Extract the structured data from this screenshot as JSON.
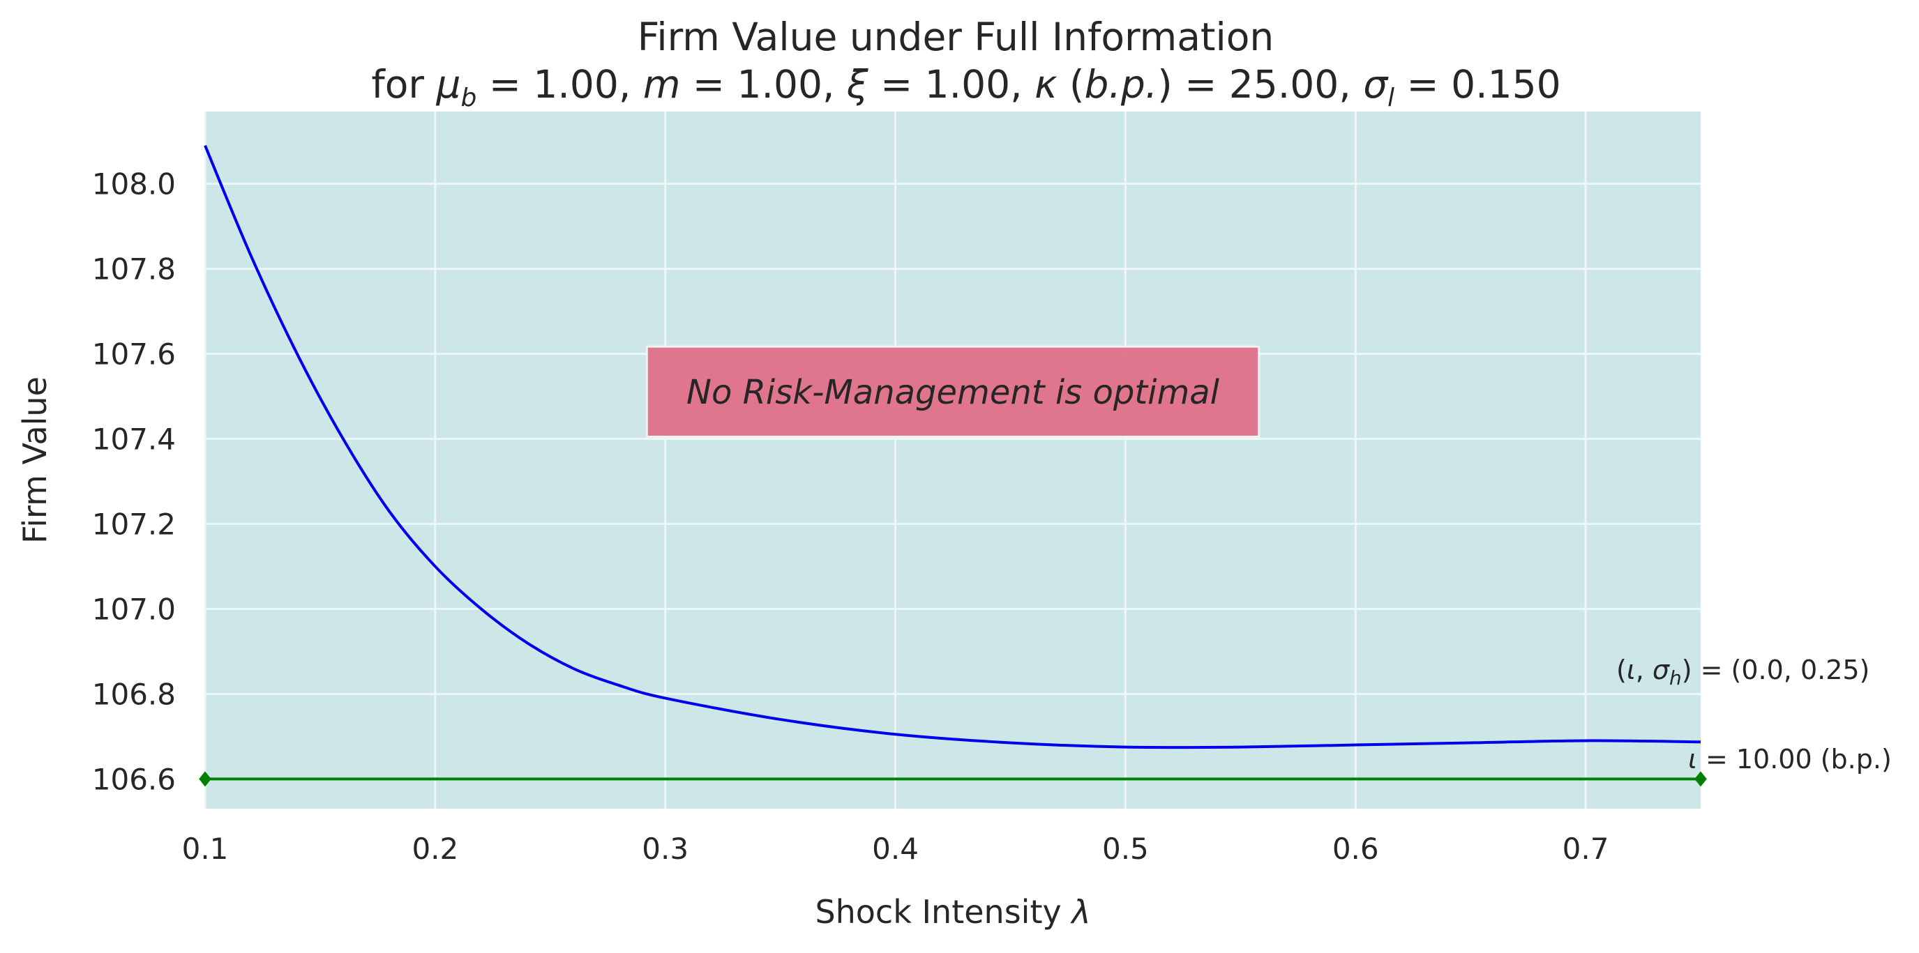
{
  "chart_data": {
    "type": "line",
    "title_line1": "Firm Value under Full Information",
    "title_line2": "for μb = 1.00, m = 1.00, ξ = 1.00, κ(b.p.) = 25.00, σl = 0.150",
    "xlabel": "Shock Intensity λ",
    "ylabel": "Firm Value",
    "xlim": [
      0.1,
      0.75
    ],
    "ylim": [
      106.53,
      108.17
    ],
    "xticks": [
      "0.1",
      "0.2",
      "0.3",
      "0.4",
      "0.5",
      "0.6",
      "0.7"
    ],
    "yticks": [
      "106.6",
      "106.8",
      "107.0",
      "107.2",
      "107.4",
      "107.6",
      "107.8",
      "108.0"
    ],
    "grid": true,
    "background": "#cde6e8",
    "series": [
      {
        "color": "#0000ee",
        "x": [
          0.1,
          0.12,
          0.14,
          0.16,
          0.18,
          0.2,
          0.22,
          0.24,
          0.26,
          0.28,
          0.3,
          0.35,
          0.4,
          0.45,
          0.5,
          0.55,
          0.6,
          0.65,
          0.7,
          0.75
        ],
        "y": [
          108.09,
          107.83,
          107.6,
          107.4,
          107.23,
          107.1,
          107.0,
          106.92,
          106.86,
          106.82,
          106.79,
          106.74,
          106.705,
          106.685,
          106.675,
          106.675,
          106.68,
          106.685,
          106.69,
          106.687
        ]
      },
      {
        "color": "#008000",
        "x": [
          0.1,
          0.75
        ],
        "y": [
          106.6,
          106.6
        ],
        "markers": "diamond"
      }
    ],
    "annotations": {
      "box_text": "No Risk-Management is optimal",
      "box_color": "#e0718a",
      "label_iota_sigma": "(ι, σh) = (0.0, 0.25)",
      "label_iota": "ι = 10.00 (b.p.)"
    }
  }
}
